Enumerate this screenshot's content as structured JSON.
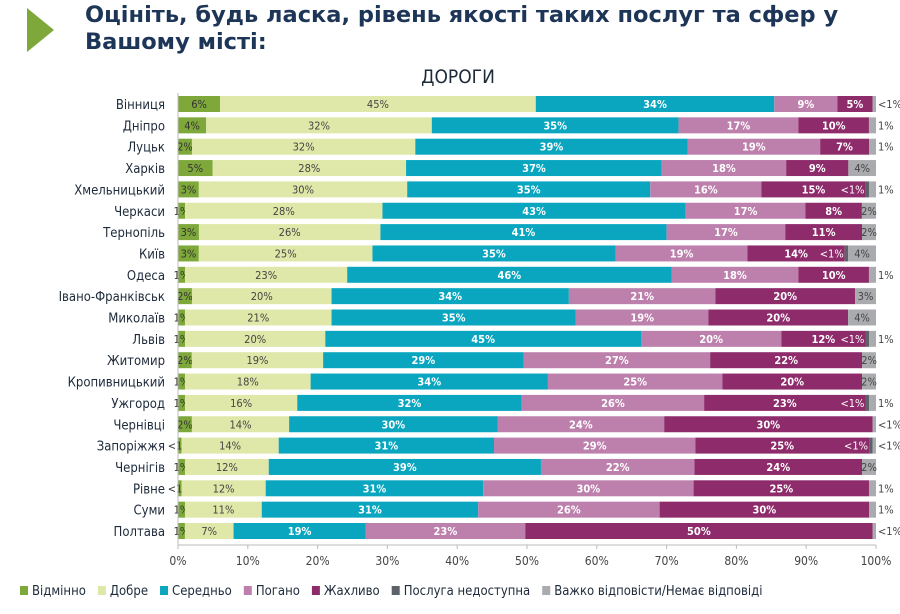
{
  "header": {
    "title": "Оцініть, будь ласка, рівень якості таких послуг та сфер у Вашому місті:"
  },
  "chart_data": {
    "type": "bar",
    "orientation": "horizontal",
    "stacked": "percent",
    "title": "ДОРОГИ",
    "xlim": [
      0,
      100
    ],
    "x_ticks": [
      "0%",
      "10%",
      "20%",
      "30%",
      "40%",
      "50%",
      "60%",
      "70%",
      "80%",
      "90%",
      "100%"
    ],
    "legend_position": "bottom",
    "grid": false,
    "categories": [
      "Вінниця",
      "Дніпро",
      "Луцьк",
      "Харків",
      "Хмельницький",
      "Черкаси",
      "Тернопіль",
      "Київ",
      "Одеса",
      "Івано-Франківськ",
      "Миколаїв",
      "Львів",
      "Житомир",
      "Кропивницький",
      "Ужгород",
      "Чернівці",
      "Запоріжжя",
      "Чернігів",
      "Рівне",
      "Суми",
      "Полтава"
    ],
    "series": [
      {
        "name": "Відмінно",
        "color": "#7ea83a",
        "label_color": "#333333",
        "labels": [
          "6%",
          "4%",
          "2%",
          "5%",
          "3%",
          "1%",
          "3%",
          "3%",
          "1%",
          "2%",
          "1%",
          "1%",
          "2%",
          "1%",
          "1%",
          "2%",
          "<1%",
          "1%",
          "<1%",
          "1%",
          "1%"
        ],
        "values": [
          6,
          4,
          2,
          5,
          3,
          1,
          3,
          3,
          1,
          2,
          1,
          1,
          2,
          1,
          1,
          2,
          0.5,
          1,
          0.5,
          1,
          1
        ]
      },
      {
        "name": "Добре",
        "color": "#dfe8a8",
        "label_color": "#444444",
        "labels": [
          "45%",
          "32%",
          "32%",
          "28%",
          "30%",
          "28%",
          "26%",
          "25%",
          "23%",
          "20%",
          "21%",
          "20%",
          "19%",
          "18%",
          "16%",
          "14%",
          "14%",
          "12%",
          "12%",
          "11%",
          "7%"
        ],
        "values": [
          45,
          32,
          32,
          28,
          30,
          28,
          26,
          25,
          23,
          20,
          21,
          20,
          19,
          18,
          16,
          14,
          14,
          12,
          12,
          11,
          7
        ]
      },
      {
        "name": "Середньо",
        "color": "#0aa6c0",
        "label_color": "#ffffff",
        "labels": [
          "34%",
          "35%",
          "39%",
          "37%",
          "35%",
          "43%",
          "41%",
          "35%",
          "46%",
          "34%",
          "35%",
          "45%",
          "29%",
          "34%",
          "32%",
          "30%",
          "31%",
          "39%",
          "31%",
          "31%",
          "19%"
        ],
        "values": [
          34,
          35,
          39,
          37,
          35,
          43,
          41,
          35,
          46,
          34,
          35,
          45,
          29,
          34,
          32,
          30,
          31,
          39,
          31,
          31,
          19
        ]
      },
      {
        "name": "Погано",
        "color": "#bd80ad",
        "label_color": "#ffffff",
        "labels": [
          "9%",
          "17%",
          "19%",
          "18%",
          "16%",
          "17%",
          "17%",
          "19%",
          "18%",
          "21%",
          "19%",
          "20%",
          "27%",
          "25%",
          "26%",
          "24%",
          "29%",
          "22%",
          "30%",
          "26%",
          "23%"
        ],
        "values": [
          9,
          17,
          19,
          18,
          16,
          17,
          17,
          19,
          18,
          21,
          19,
          20,
          27,
          25,
          26,
          24,
          29,
          22,
          30,
          26,
          23
        ]
      },
      {
        "name": "Жахливо",
        "color": "#8e2b6b",
        "label_color": "#ffffff",
        "labels": [
          "5%",
          "10%",
          "7%",
          "9%",
          "15%",
          "8%",
          "11%",
          "14%",
          "10%",
          "20%",
          "20%",
          "12%",
          "22%",
          "20%",
          "23%",
          "30%",
          "25%",
          "24%",
          "25%",
          "30%",
          "50%"
        ],
        "values": [
          5,
          10,
          7,
          9,
          15,
          8,
          11,
          14,
          10,
          20,
          20,
          12,
          22,
          20,
          23,
          30,
          25,
          24,
          25,
          30,
          50
        ]
      },
      {
        "name": "Послуга недоступна",
        "color": "#5d6268",
        "label_color": "#ffffff",
        "labels": [
          "",
          "",
          "",
          "",
          "<1%",
          "",
          "",
          "<1%",
          "",
          "",
          "",
          "<1%",
          "",
          "",
          "<1%",
          "",
          "<1%",
          "",
          "",
          "",
          ""
        ],
        "values": [
          0,
          0,
          0,
          0,
          0.5,
          0,
          0,
          0.5,
          0,
          0,
          0,
          0.5,
          0,
          0,
          0.5,
          0,
          0.5,
          0,
          0,
          0,
          0
        ]
      },
      {
        "name": "Важко відповісти/Немає відповіді",
        "color": "#a9abae",
        "label_color": "#444444",
        "labels": [
          "<1%",
          "1%",
          "1%",
          "4%",
          "1%",
          "2%",
          "2%",
          "4%",
          "1%",
          "3%",
          "4%",
          "1%",
          "2%",
          "2%",
          "1%",
          "<1%",
          "<1%",
          "2%",
          "1%",
          "1%",
          "<1%"
        ],
        "values": [
          0.5,
          1,
          1,
          4,
          1,
          2,
          2,
          4,
          1,
          3,
          4,
          1,
          2,
          2,
          1,
          0.5,
          0.5,
          2,
          1,
          1,
          0.5
        ]
      }
    ]
  }
}
